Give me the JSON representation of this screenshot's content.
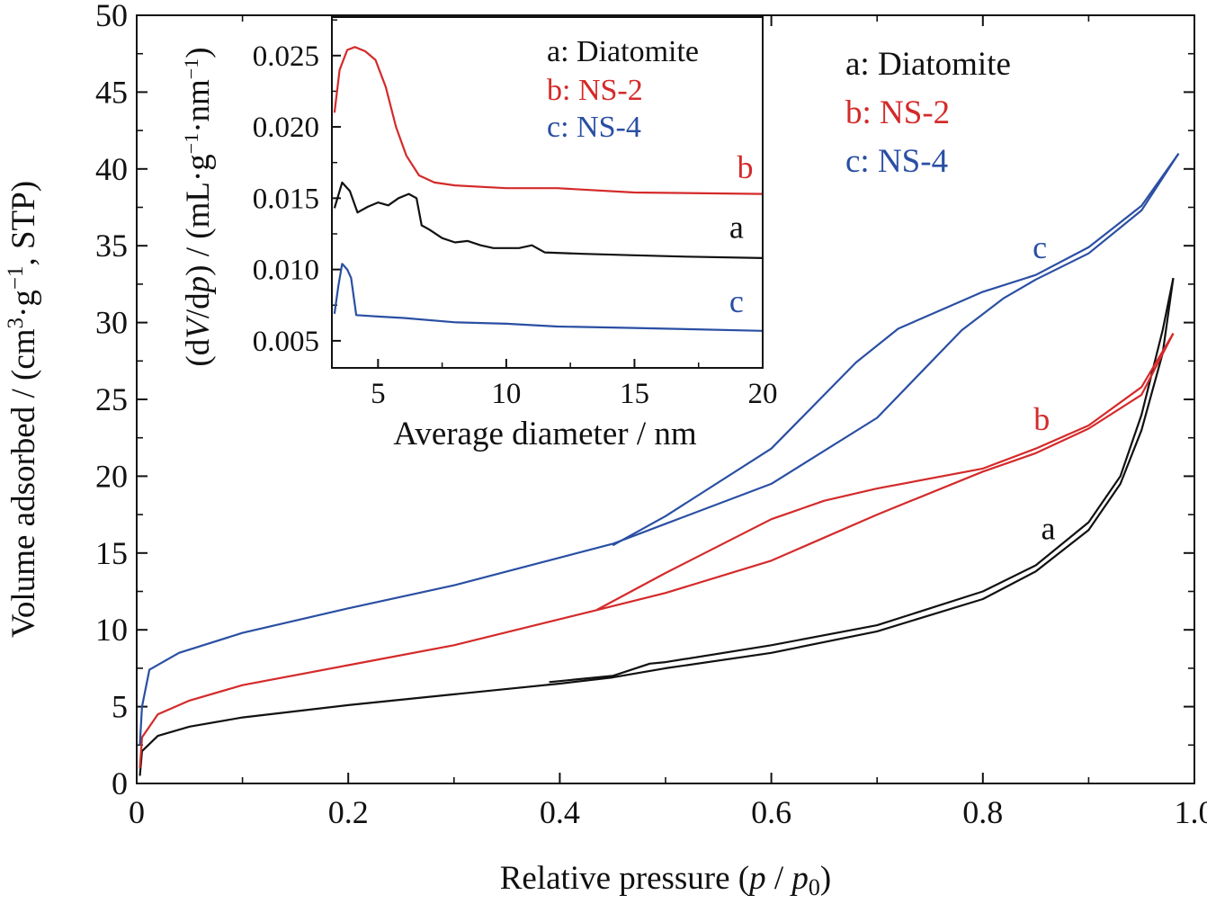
{
  "chart_data": [
    {
      "type": "line",
      "xlabel_parts": [
        "Relative pressure (",
        "p",
        " / ",
        "p",
        "0",
        ")"
      ],
      "ylabel_parts": [
        "Volume adsorbed / (cm",
        "3",
        "·g",
        "−1",
        ", STP)"
      ],
      "xlim": [
        0,
        1.0
      ],
      "ylim": [
        0,
        50
      ],
      "xticks": [
        "0",
        "0.2",
        "0.4",
        "0.6",
        "0.8",
        "1.0"
      ],
      "yticks": [
        "0",
        "5",
        "10",
        "15",
        "20",
        "25",
        "30",
        "35",
        "40",
        "45",
        "50"
      ],
      "grid": false,
      "legend": {
        "position": "top-right",
        "entries": [
          "a: Diatomite",
          "b: NS-2",
          "c: NS-4"
        ]
      },
      "curve_tags": [
        {
          "text": "a",
          "x": 0.855,
          "y": 15.9,
          "color": "#111111"
        },
        {
          "text": "b",
          "x": 0.848,
          "y": 23.0,
          "color": "#d42a2a"
        },
        {
          "text": "c",
          "x": 0.847,
          "y": 34.2,
          "color": "#2a4fa3"
        }
      ],
      "series": [
        {
          "key": "a",
          "color": "#111111",
          "adsorption": [
            [
              0.003,
              0.5
            ],
            [
              0.005,
              2.1
            ],
            [
              0.02,
              3.1
            ],
            [
              0.05,
              3.7
            ],
            [
              0.1,
              4.3
            ],
            [
              0.2,
              5.1
            ],
            [
              0.3,
              5.8
            ],
            [
              0.4,
              6.5
            ],
            [
              0.45,
              6.9
            ],
            [
              0.5,
              7.5
            ],
            [
              0.6,
              8.5
            ],
            [
              0.7,
              9.9
            ],
            [
              0.8,
              12.0
            ],
            [
              0.85,
              13.8
            ],
            [
              0.9,
              16.5
            ],
            [
              0.93,
              19.5
            ],
            [
              0.95,
              23.0
            ],
            [
              0.97,
              28.0
            ],
            [
              0.98,
              32.9
            ]
          ],
          "desorption": [
            [
              0.98,
              32.9
            ],
            [
              0.97,
              29.5
            ],
            [
              0.95,
              24.0
            ],
            [
              0.93,
              20.0
            ],
            [
              0.9,
              17.0
            ],
            [
              0.85,
              14.2
            ],
            [
              0.8,
              12.5
            ],
            [
              0.7,
              10.3
            ],
            [
              0.6,
              9.0
            ],
            [
              0.5,
              7.9
            ],
            [
              0.485,
              7.8
            ],
            [
              0.45,
              7.0
            ],
            [
              0.39,
              6.6
            ]
          ]
        },
        {
          "key": "b",
          "color": "#d42a2a",
          "adsorption": [
            [
              0.003,
              1.0
            ],
            [
              0.005,
              3.0
            ],
            [
              0.02,
              4.5
            ],
            [
              0.05,
              5.4
            ],
            [
              0.1,
              6.4
            ],
            [
              0.2,
              7.7
            ],
            [
              0.3,
              9.0
            ],
            [
              0.43,
              11.2
            ],
            [
              0.5,
              12.4
            ],
            [
              0.6,
              14.5
            ],
            [
              0.7,
              17.5
            ],
            [
              0.8,
              20.3
            ],
            [
              0.85,
              21.5
            ],
            [
              0.9,
              23.1
            ],
            [
              0.95,
              25.3
            ],
            [
              0.98,
              29.3
            ]
          ],
          "desorption": [
            [
              0.98,
              29.3
            ],
            [
              0.95,
              25.8
            ],
            [
              0.9,
              23.3
            ],
            [
              0.85,
              21.8
            ],
            [
              0.8,
              20.5
            ],
            [
              0.7,
              19.2
            ],
            [
              0.65,
              18.4
            ],
            [
              0.6,
              17.2
            ],
            [
              0.5,
              13.7
            ],
            [
              0.435,
              11.3
            ]
          ]
        },
        {
          "key": "c",
          "color": "#2a4fa3",
          "adsorption": [
            [
              0.003,
              2.5
            ],
            [
              0.005,
              5.0
            ],
            [
              0.012,
              7.4
            ],
            [
              0.04,
              8.5
            ],
            [
              0.1,
              9.8
            ],
            [
              0.2,
              11.4
            ],
            [
              0.3,
              12.9
            ],
            [
              0.4,
              14.7
            ],
            [
              0.45,
              15.6
            ],
            [
              0.5,
              16.9
            ],
            [
              0.6,
              19.5
            ],
            [
              0.7,
              23.8
            ],
            [
              0.78,
              29.5
            ],
            [
              0.82,
              31.6
            ],
            [
              0.85,
              32.8
            ],
            [
              0.9,
              34.5
            ],
            [
              0.95,
              37.3
            ],
            [
              0.985,
              41.0
            ]
          ],
          "desorption": [
            [
              0.985,
              41.0
            ],
            [
              0.95,
              37.6
            ],
            [
              0.9,
              34.9
            ],
            [
              0.85,
              33.1
            ],
            [
              0.8,
              32.0
            ],
            [
              0.72,
              29.6
            ],
            [
              0.68,
              27.4
            ],
            [
              0.6,
              21.8
            ],
            [
              0.5,
              17.4
            ],
            [
              0.45,
              15.5
            ]
          ]
        }
      ]
    },
    {
      "type": "line",
      "inset": true,
      "xlabel": "Average diameter / nm",
      "ylabel_parts": [
        "(d",
        "V",
        "/d",
        "p",
        ") / (mL·g",
        "−1",
        "·nm",
        "−1",
        ")"
      ],
      "xlim": [
        3.2,
        20
      ],
      "ylim": [
        0.0031,
        0.0277
      ],
      "xticks": [
        [
          "5",
          5
        ],
        [
          "10",
          10
        ],
        [
          "15",
          15
        ],
        [
          "20",
          20
        ]
      ],
      "yticks": [
        [
          "0.005",
          0.005
        ],
        [
          "0.010",
          0.01
        ],
        [
          "0.015",
          0.015
        ],
        [
          "0.020",
          0.02
        ],
        [
          "0.025",
          0.025
        ]
      ],
      "grid": false,
      "legend": {
        "position": "top-right",
        "entries": [
          "a: Diatomite",
          "b: NS-2",
          "c: NS-4"
        ]
      },
      "curve_tags": [
        {
          "text": "b",
          "x": 19.0,
          "y": 0.0164,
          "color": "#d42a2a"
        },
        {
          "text": "a",
          "x": 18.7,
          "y": 0.0122,
          "color": "#111111"
        },
        {
          "text": "c",
          "x": 18.7,
          "y": 0.007,
          "color": "#2a4fa3"
        }
      ],
      "series": [
        {
          "key": "a",
          "color": "#111111",
          "points": [
            [
              3.3,
              0.0143
            ],
            [
              3.6,
              0.0161
            ],
            [
              3.9,
              0.0155
            ],
            [
              4.2,
              0.014
            ],
            [
              4.6,
              0.0144
            ],
            [
              5.0,
              0.0147
            ],
            [
              5.4,
              0.0145
            ],
            [
              5.8,
              0.015
            ],
            [
              6.2,
              0.0153
            ],
            [
              6.5,
              0.015
            ],
            [
              6.7,
              0.0131
            ],
            [
              7.0,
              0.0128
            ],
            [
              7.5,
              0.0122
            ],
            [
              8.0,
              0.0119
            ],
            [
              8.5,
              0.012
            ],
            [
              9.0,
              0.0117
            ],
            [
              9.5,
              0.0115
            ],
            [
              10.5,
              0.0115
            ],
            [
              11.0,
              0.0117
            ],
            [
              11.5,
              0.0112
            ],
            [
              13,
              0.0111
            ],
            [
              15,
              0.011
            ],
            [
              17,
              0.0109
            ],
            [
              20,
              0.0108
            ]
          ]
        },
        {
          "key": "b",
          "color": "#d42a2a",
          "points": [
            [
              3.3,
              0.021
            ],
            [
              3.5,
              0.024
            ],
            [
              3.8,
              0.0254
            ],
            [
              4.1,
              0.0256
            ],
            [
              4.5,
              0.0253
            ],
            [
              4.9,
              0.0247
            ],
            [
              5.3,
              0.0228
            ],
            [
              5.7,
              0.02
            ],
            [
              6.1,
              0.018
            ],
            [
              6.6,
              0.0166
            ],
            [
              7.2,
              0.0161
            ],
            [
              8,
              0.0159
            ],
            [
              10,
              0.0157
            ],
            [
              12,
              0.0157
            ],
            [
              15,
              0.0154
            ],
            [
              20,
              0.0153
            ]
          ]
        },
        {
          "key": "c",
          "color": "#2a4fa3",
          "points": [
            [
              3.3,
              0.0069
            ],
            [
              3.45,
              0.0088
            ],
            [
              3.6,
              0.0104
            ],
            [
              3.8,
              0.01
            ],
            [
              3.95,
              0.0094
            ],
            [
              4.15,
              0.0068
            ],
            [
              5,
              0.0067
            ],
            [
              6,
              0.0066
            ],
            [
              8,
              0.0063
            ],
            [
              10,
              0.0062
            ],
            [
              12,
              0.006
            ],
            [
              15,
              0.0059
            ],
            [
              20,
              0.0057
            ]
          ]
        }
      ]
    }
  ]
}
